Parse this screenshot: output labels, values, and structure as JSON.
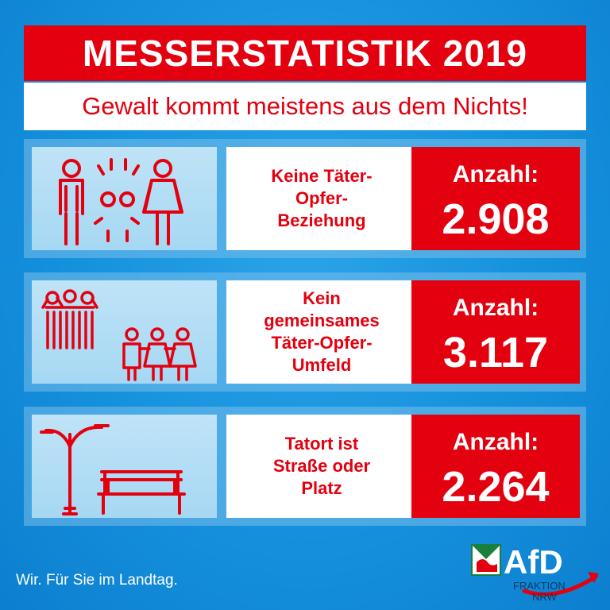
{
  "header": {
    "title": "MESSERSTATISTIK 2019",
    "subtitle": "Gewalt kommt meistens aus dem Nichts!"
  },
  "rows": [
    {
      "icon": "man-woman-broken-chain-icon",
      "description_lines": [
        "Keine Täter-",
        "Opfer-",
        "Beziehung"
      ],
      "count_label": "Anzahl:",
      "count_value": "2.908"
    },
    {
      "icon": "separate-groups-icon",
      "description_lines": [
        "Kein",
        "gemeinsames",
        "Täter-Opfer-",
        "Umfeld"
      ],
      "count_label": "Anzahl:",
      "count_value": "3.117"
    },
    {
      "icon": "street-lamp-bench-icon",
      "description_lines": [
        "Tatort ist",
        "Straße oder",
        "Platz"
      ],
      "count_label": "Anzahl:",
      "count_value": "2.264"
    }
  ],
  "footer": {
    "slogan": "Wir. Für Sie im Landtag.",
    "logo_text": "AfD",
    "logo_sub1": "FRAKTION",
    "logo_sub2": "NRW"
  },
  "colors": {
    "accent_red": "#e3000f",
    "background_blue": "#1591dc",
    "white": "#ffffff"
  }
}
